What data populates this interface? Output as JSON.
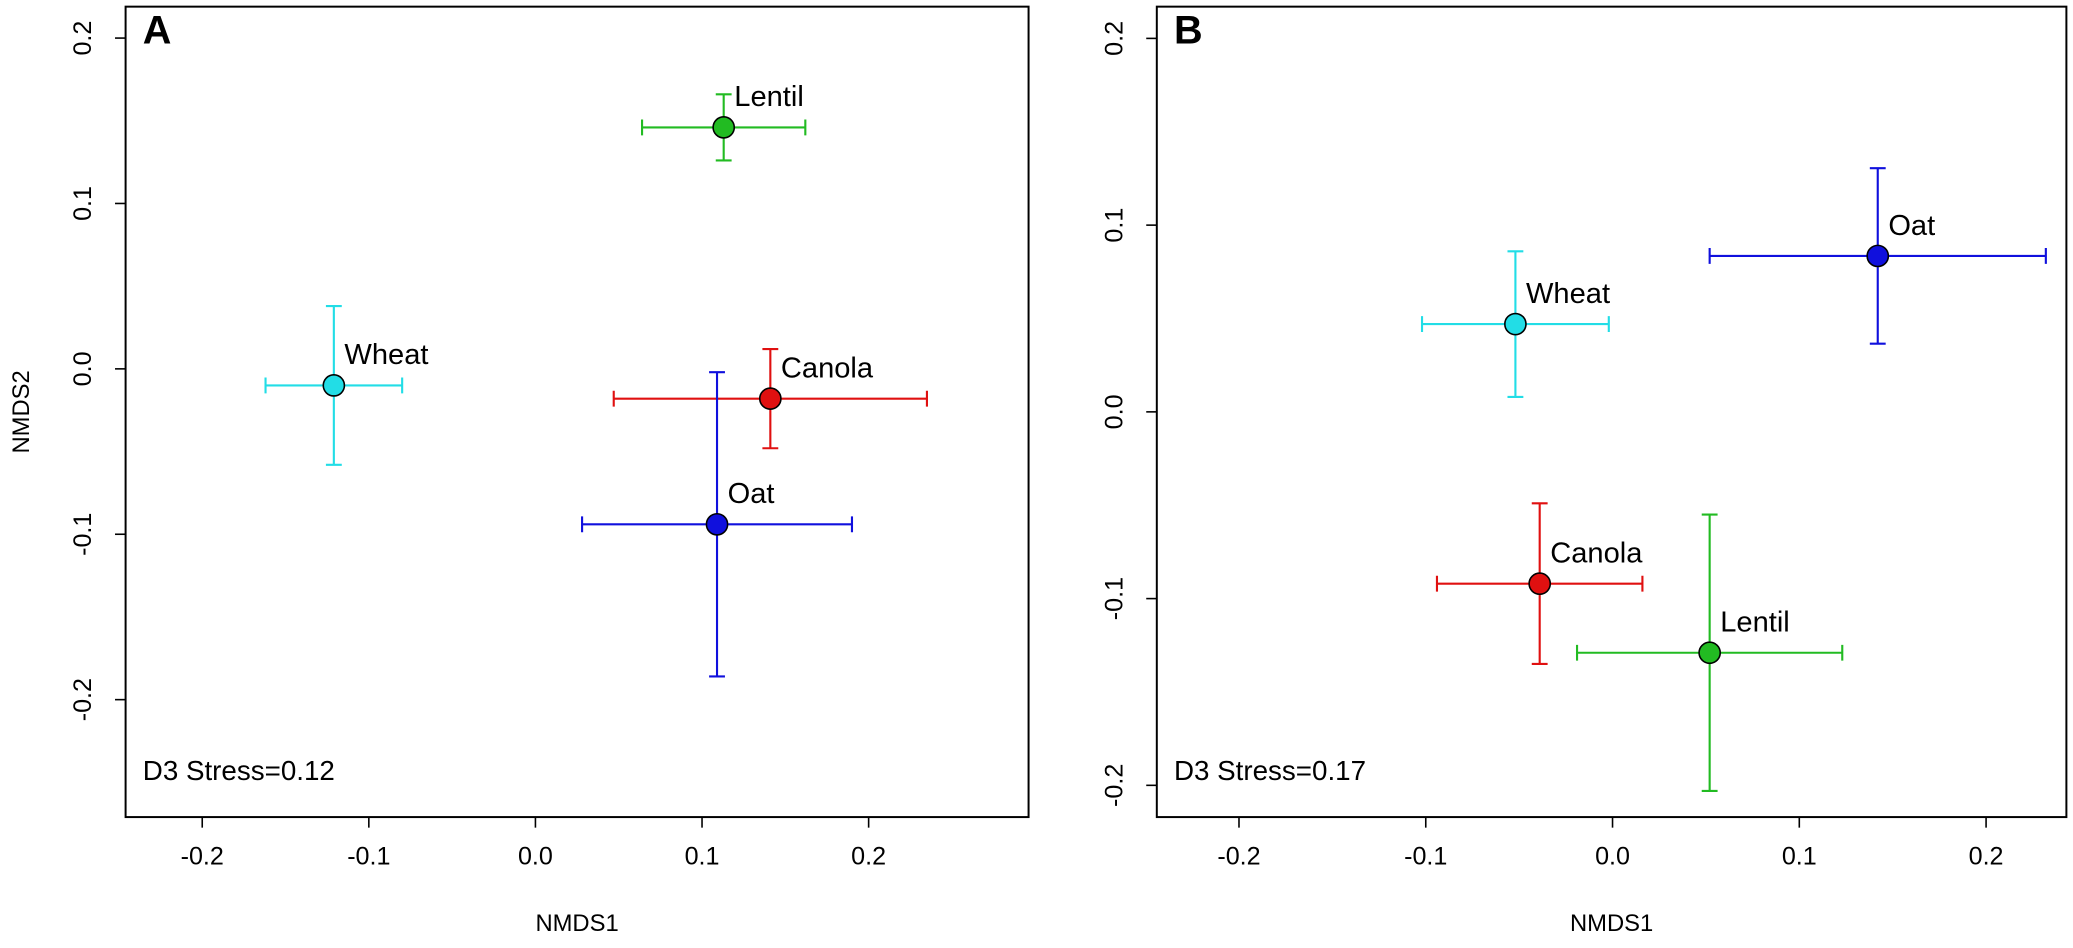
{
  "chart_data": [
    {
      "type": "scatter",
      "panel": "A",
      "annotation": "D3 Stress=0.12",
      "xlabel": "NMDS1",
      "ylabel": "NMDS2",
      "xlim": [
        -0.246,
        0.296
      ],
      "ylim": [
        -0.271,
        0.219
      ],
      "xticks": [
        -0.2,
        -0.1,
        {
          "value": 0,
          "label": "0.0"
        },
        0.1,
        0.2
      ],
      "yticks": [
        -0.2,
        -0.1,
        {
          "value": 0,
          "label": "0.0"
        },
        0.1,
        0.2
      ],
      "series": [
        {
          "name": "Lentil",
          "color": "#22bb22",
          "x": [
            0.113
          ],
          "values": [
            0.146
          ],
          "xerr": [
            0.049
          ],
          "yerr": [
            0.02
          ]
        },
        {
          "name": "Wheat",
          "color": "#22dde6",
          "x": [
            -0.121
          ],
          "values": [
            -0.01
          ],
          "xerr": [
            0.041
          ],
          "yerr": [
            0.048
          ]
        },
        {
          "name": "Canola",
          "color": "#e01010",
          "x": [
            0.141
          ],
          "values": [
            -0.018
          ],
          "xerr": [
            0.094
          ],
          "yerr": [
            0.03
          ]
        },
        {
          "name": "Oat",
          "color": "#1010dd",
          "x": [
            0.109
          ],
          "values": [
            -0.094
          ],
          "xerr": [
            0.081
          ],
          "yerr": [
            0.092
          ]
        }
      ]
    },
    {
      "type": "scatter",
      "panel": "B",
      "annotation": "D3 Stress=0.17",
      "xlabel": "NMDS1",
      "xlim": [
        -0.244,
        0.243
      ],
      "ylim": [
        -0.217,
        0.217
      ],
      "xticks": [
        -0.2,
        -0.1,
        {
          "value": 0,
          "label": "0.0"
        },
        0.1,
        0.2
      ],
      "yticks": [
        -0.2,
        -0.1,
        {
          "value": 0,
          "label": "0.0"
        },
        0.1,
        0.2
      ],
      "series": [
        {
          "name": "Oat",
          "color": "#1010dd",
          "x": [
            0.142
          ],
          "values": [
            0.0835
          ],
          "xerr": [
            0.09
          ],
          "yerr": [
            0.047
          ]
        },
        {
          "name": "Wheat",
          "color": "#22dde6",
          "x": [
            -0.052
          ],
          "values": [
            0.047
          ],
          "xerr": [
            0.05
          ],
          "yerr": [
            0.039
          ]
        },
        {
          "name": "Canola",
          "color": "#e01010",
          "x": [
            -0.039
          ],
          "values": [
            -0.092
          ],
          "xerr": [
            0.055
          ],
          "yerr": [
            0.043
          ]
        },
        {
          "name": "Lentil",
          "color": "#22bb22",
          "x": [
            0.052
          ],
          "values": [
            -0.129
          ],
          "xerr": [
            0.071
          ],
          "yerr": [
            0.074
          ]
        }
      ]
    }
  ]
}
